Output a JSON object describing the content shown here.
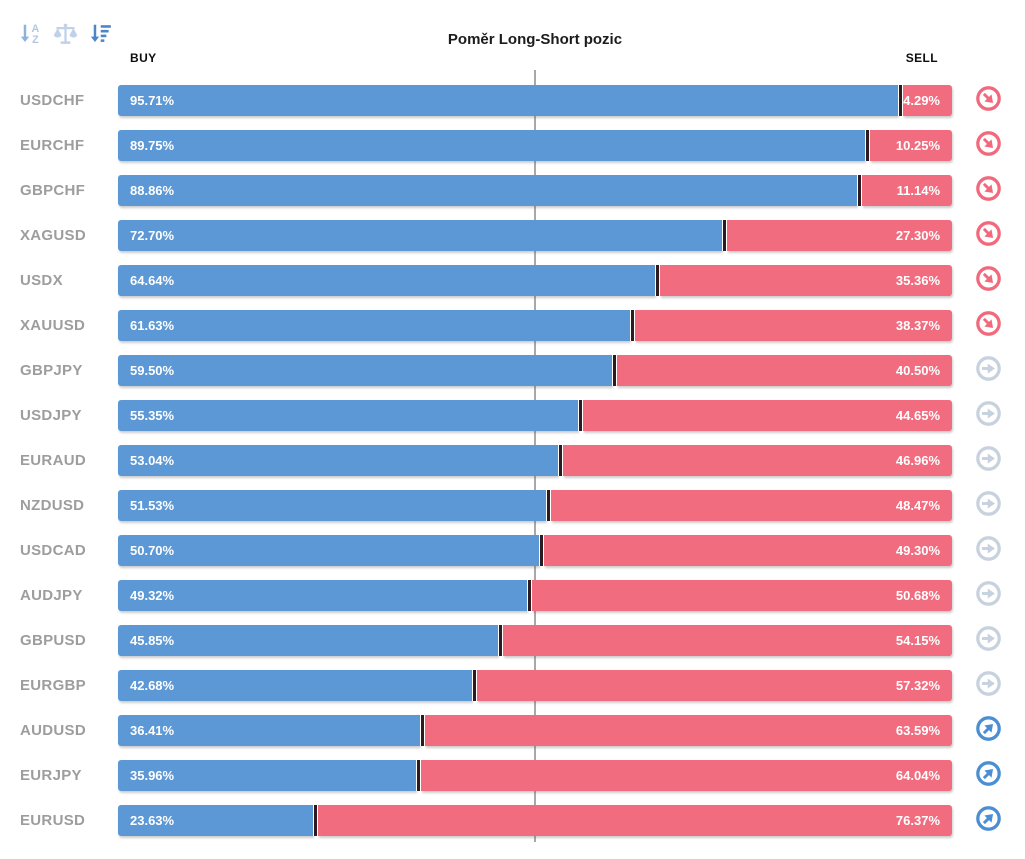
{
  "title": "Poměr Long-Short pozic",
  "header": {
    "buy": "BUY",
    "sell": "SELL"
  },
  "toolbar": {
    "icons": [
      {
        "name": "sort-alphabetical-icon"
      },
      {
        "name": "balance-scale-icon"
      },
      {
        "name": "sort-amount-icon"
      }
    ]
  },
  "colors": {
    "buy": "#5B98D5",
    "sell": "#F06C7E",
    "divider": "#2E1B20",
    "centerline": "#A8A8A8",
    "pair_label": "#9D9D9D",
    "trend_down": "#F2697C",
    "trend_flat": "#C8D2DF",
    "trend_up": "#4A8ED3",
    "sort_icon_medium": "#8FB2DA",
    "sort_icon_light": "#C0D2E9",
    "sort_icon_active": "#4D86C6"
  },
  "chart_data": {
    "type": "bar",
    "orientation": "horizontal-stacked",
    "title": "Poměr Long-Short pozic",
    "xlabel": "",
    "ylabel": "",
    "xlim": [
      0,
      100
    ],
    "center_gridline": 50,
    "value_format": "percent",
    "legend_position": "top (BUY left, SELL right)",
    "categories": [
      "USDCHF",
      "EURCHF",
      "GBPCHF",
      "XAGUSD",
      "USDX",
      "XAUUSD",
      "GBPJPY",
      "USDJPY",
      "EURAUD",
      "NZDUSD",
      "USDCAD",
      "AUDJPY",
      "GBPUSD",
      "EURGBP",
      "AUDUSD",
      "EURJPY",
      "EURUSD"
    ],
    "series": [
      {
        "name": "BUY",
        "values": [
          95.71,
          89.75,
          88.86,
          72.7,
          64.64,
          61.63,
          59.5,
          55.35,
          53.04,
          51.53,
          50.7,
          49.32,
          45.85,
          42.68,
          36.41,
          35.96,
          23.63
        ]
      },
      {
        "name": "SELL",
        "values": [
          4.29,
          10.25,
          11.14,
          27.3,
          35.36,
          38.37,
          40.5,
          44.65,
          46.96,
          48.47,
          49.3,
          50.68,
          54.15,
          57.32,
          63.59,
          64.04,
          76.37
        ]
      }
    ],
    "rows": [
      {
        "pair": "USDCHF",
        "buy": 95.71,
        "sell": 4.29,
        "buy_label": "95.71%",
        "sell_label": "4.29%",
        "trend": "down"
      },
      {
        "pair": "EURCHF",
        "buy": 89.75,
        "sell": 10.25,
        "buy_label": "89.75%",
        "sell_label": "10.25%",
        "trend": "down"
      },
      {
        "pair": "GBPCHF",
        "buy": 88.86,
        "sell": 11.14,
        "buy_label": "88.86%",
        "sell_label": "11.14%",
        "trend": "down"
      },
      {
        "pair": "XAGUSD",
        "buy": 72.7,
        "sell": 27.3,
        "buy_label": "72.70%",
        "sell_label": "27.30%",
        "trend": "down"
      },
      {
        "pair": "USDX",
        "buy": 64.64,
        "sell": 35.36,
        "buy_label": "64.64%",
        "sell_label": "35.36%",
        "trend": "down"
      },
      {
        "pair": "XAUUSD",
        "buy": 61.63,
        "sell": 38.37,
        "buy_label": "61.63%",
        "sell_label": "38.37%",
        "trend": "down"
      },
      {
        "pair": "GBPJPY",
        "buy": 59.5,
        "sell": 40.5,
        "buy_label": "59.50%",
        "sell_label": "40.50%",
        "trend": "flat"
      },
      {
        "pair": "USDJPY",
        "buy": 55.35,
        "sell": 44.65,
        "buy_label": "55.35%",
        "sell_label": "44.65%",
        "trend": "flat"
      },
      {
        "pair": "EURAUD",
        "buy": 53.04,
        "sell": 46.96,
        "buy_label": "53.04%",
        "sell_label": "46.96%",
        "trend": "flat"
      },
      {
        "pair": "NZDUSD",
        "buy": 51.53,
        "sell": 48.47,
        "buy_label": "51.53%",
        "sell_label": "48.47%",
        "trend": "flat"
      },
      {
        "pair": "USDCAD",
        "buy": 50.7,
        "sell": 49.3,
        "buy_label": "50.70%",
        "sell_label": "49.30%",
        "trend": "flat"
      },
      {
        "pair": "AUDJPY",
        "buy": 49.32,
        "sell": 50.68,
        "buy_label": "49.32%",
        "sell_label": "50.68%",
        "trend": "flat"
      },
      {
        "pair": "GBPUSD",
        "buy": 45.85,
        "sell": 54.15,
        "buy_label": "45.85%",
        "sell_label": "54.15%",
        "trend": "flat"
      },
      {
        "pair": "EURGBP",
        "buy": 42.68,
        "sell": 57.32,
        "buy_label": "42.68%",
        "sell_label": "57.32%",
        "trend": "flat"
      },
      {
        "pair": "AUDUSD",
        "buy": 36.41,
        "sell": 63.59,
        "buy_label": "36.41%",
        "sell_label": "63.59%",
        "trend": "up"
      },
      {
        "pair": "EURJPY",
        "buy": 35.96,
        "sell": 64.04,
        "buy_label": "35.96%",
        "sell_label": "64.04%",
        "trend": "up"
      },
      {
        "pair": "EURUSD",
        "buy": 23.63,
        "sell": 76.37,
        "buy_label": "23.63%",
        "sell_label": "76.37%",
        "trend": "up"
      }
    ]
  }
}
